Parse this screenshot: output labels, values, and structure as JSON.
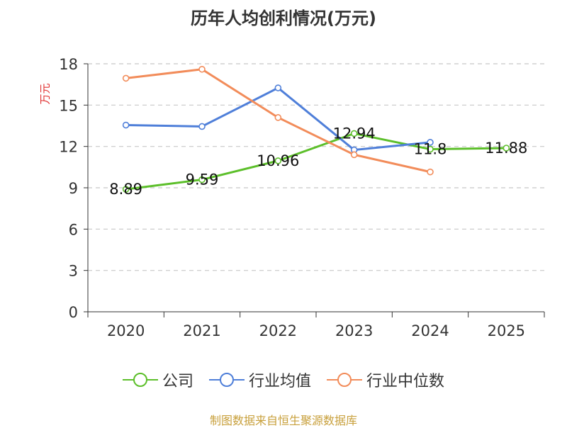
{
  "chart_data": {
    "type": "line",
    "title": "历年人均创利情况(万元)",
    "xlabel": "",
    "ylabel": "万元",
    "categories": [
      "2020",
      "2021",
      "2022",
      "2023",
      "2024",
      "2025"
    ],
    "ylim": [
      0,
      18
    ],
    "yticks": [
      0,
      3,
      6,
      9,
      12,
      15,
      18
    ],
    "grid": true,
    "legend_position": "bottom",
    "series": [
      {
        "name": "公司",
        "color": "#5cbf2a",
        "values": [
          8.89,
          9.59,
          10.96,
          12.94,
          11.8,
          11.88
        ],
        "labels": [
          "8.89",
          "9.59",
          "10.96",
          "12.94",
          "11.8",
          "11.88"
        ]
      },
      {
        "name": "行业均值",
        "color": "#4f7fd9",
        "values": [
          13.55,
          13.45,
          16.25,
          11.75,
          12.3,
          null
        ]
      },
      {
        "name": "行业中位数",
        "color": "#f28c5a",
        "values": [
          16.95,
          17.6,
          14.1,
          11.4,
          10.15,
          null
        ]
      }
    ]
  },
  "source": "制图数据来自恒生聚源数据库"
}
